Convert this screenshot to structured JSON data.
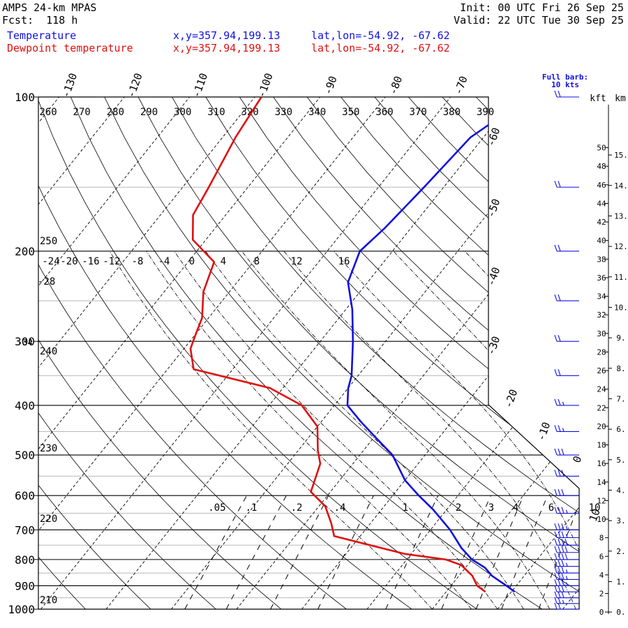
{
  "header": {
    "model": "AMPS 24-km MPAS",
    "forecast": "Fcst:  118 h",
    "init": "Init: 00 UTC Fri 26 Sep 25",
    "valid": "Valid: 22 UTC Tue 30 Sep 25",
    "legend": [
      {
        "name": "Temperature",
        "xy": "x,y=357.94,199.13",
        "latlon": "lat,lon=-54.92, -67.62",
        "color": "#1010e0"
      },
      {
        "name": "Dewpoint temperature",
        "xy": "x,y=357.94,199.13",
        "latlon": "lat,lon=-54.92, -67.62",
        "color": "#e01010"
      }
    ]
  },
  "barb_label": [
    "Full barb:",
    "10 kts"
  ],
  "height_axis": {
    "kft_label": "kft",
    "km_label": "km",
    "kft_ticks": [
      0,
      2,
      4,
      6,
      8,
      10,
      12,
      14,
      16,
      18,
      20,
      22,
      24,
      26,
      28,
      30,
      32,
      34,
      36,
      38,
      40,
      42,
      44,
      46,
      48,
      50
    ],
    "km_ticks": [
      0,
      1,
      2,
      3,
      4,
      5,
      6,
      7,
      8,
      9,
      10,
      11,
      12,
      13,
      14,
      15
    ]
  },
  "chart_data": {
    "type": "line",
    "diagram": "skew-T log-p",
    "y_axis": {
      "quantity": "pressure (hPa)",
      "ticks": [
        100,
        200,
        300,
        400,
        500,
        600,
        700,
        800,
        900,
        1000
      ],
      "scale": "log",
      "ylim": [
        1000,
        100
      ]
    },
    "isotherm_labels_top": [
      -130,
      -120,
      -110,
      -100,
      -90,
      -80,
      -70
    ],
    "isotherm_labels_right": [
      -60,
      -50,
      -40,
      -30,
      -20,
      -10,
      0,
      10
    ],
    "theta_labels_top": [
      260,
      270,
      280,
      290,
      300,
      310,
      320,
      330,
      340,
      350,
      360,
      370,
      380,
      390
    ],
    "theta_labels_left": [
      {
        "p": 195,
        "v": 250
      },
      {
        "p": 320,
        "v": 240
      },
      {
        "p": 495,
        "v": 230
      },
      {
        "p": 680,
        "v": 220
      },
      {
        "p": 980,
        "v": 210
      }
    ],
    "thetae_labels": [
      -24,
      -20,
      -16,
      -12,
      -8,
      -4,
      0,
      4,
      8,
      12,
      16
    ],
    "thetae_left_label": -28,
    "thetae_left_label_b": -34,
    "mixing_ratio_labels": [
      ".05",
      ".1",
      ".2",
      ".4",
      "1",
      "2",
      "3",
      "4",
      "6",
      "10"
    ],
    "series": [
      {
        "name": "Temperature",
        "color": "#1010e0",
        "p": [
          925,
          900,
          860,
          830,
          800,
          760,
          700,
          640,
          600,
          560,
          500,
          460,
          430,
          400,
          370,
          350,
          300,
          260,
          230,
          200,
          180,
          150,
          120,
          100
        ],
        "t": [
          0.5,
          -1.5,
          -5,
          -7,
          -10,
          -13,
          -17,
          -22,
          -26,
          -30,
          -35,
          -40,
          -44,
          -48,
          -50,
          -51,
          -55,
          -59,
          -63,
          -65,
          -64,
          -63,
          -62,
          -58
        ]
      },
      {
        "name": "Dewpoint temperature",
        "color": "#e01010",
        "p": [
          925,
          900,
          860,
          820,
          800,
          780,
          720,
          680,
          630,
          590,
          520,
          490,
          440,
          400,
          370,
          340,
          310,
          290,
          270,
          240,
          210,
          190,
          170,
          150,
          120,
          100
        ],
        "t": [
          -4,
          -6,
          -8,
          -11,
          -14,
          -21,
          -34,
          -36,
          -39,
          -43,
          -45,
          -47,
          -50,
          -55,
          -62,
          -76,
          -79,
          -80,
          -81,
          -84,
          -86,
          -92,
          -95,
          -96,
          -98,
          -99
        ]
      }
    ],
    "wind_profile": {
      "pressures": [
        1000,
        975,
        950,
        925,
        900,
        875,
        850,
        825,
        800,
        775,
        750,
        725,
        700,
        650,
        600,
        550,
        500,
        450,
        400,
        350,
        300,
        250,
        200,
        150,
        100
      ],
      "speeds_kt": [
        20,
        25,
        30,
        30,
        35,
        35,
        35,
        35,
        40,
        40,
        40,
        35,
        35,
        35,
        30,
        30,
        30,
        25,
        25,
        20,
        20,
        20,
        20,
        20,
        20
      ]
    }
  }
}
